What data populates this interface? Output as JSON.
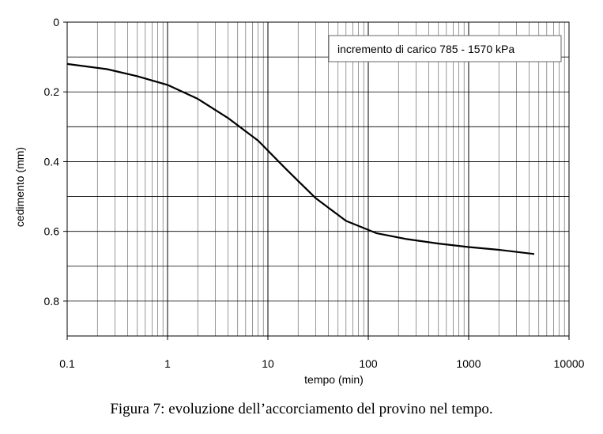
{
  "chart_data": {
    "type": "line",
    "xlabel": "tempo (min)",
    "ylabel": "cedimento (mm)",
    "x_scale": "log",
    "xlim": [
      0.1,
      10000
    ],
    "ylim": [
      0,
      0.9
    ],
    "y_inverted": true,
    "grid": true,
    "x_ticks": [
      "0.1",
      "1",
      "10",
      "100",
      "1000",
      "10000"
    ],
    "y_ticks": [
      "0",
      "0.2",
      "0.4",
      "0.6",
      "0.8"
    ],
    "legend_position": "top-right",
    "series": [
      {
        "name": "incremento di carico 785 - 1570 kPa",
        "color": "#000000",
        "x": [
          0.1,
          0.25,
          0.5,
          1,
          2,
          4,
          8,
          15,
          30,
          60,
          120,
          240,
          500,
          1000,
          2000,
          4500
        ],
        "y": [
          0.12,
          0.135,
          0.155,
          0.18,
          0.22,
          0.275,
          0.34,
          0.42,
          0.505,
          0.57,
          0.605,
          0.622,
          0.635,
          0.645,
          0.653,
          0.665
        ]
      }
    ]
  },
  "caption": "Figura 7: evoluzione dell’accorciamento del provino nel tempo."
}
